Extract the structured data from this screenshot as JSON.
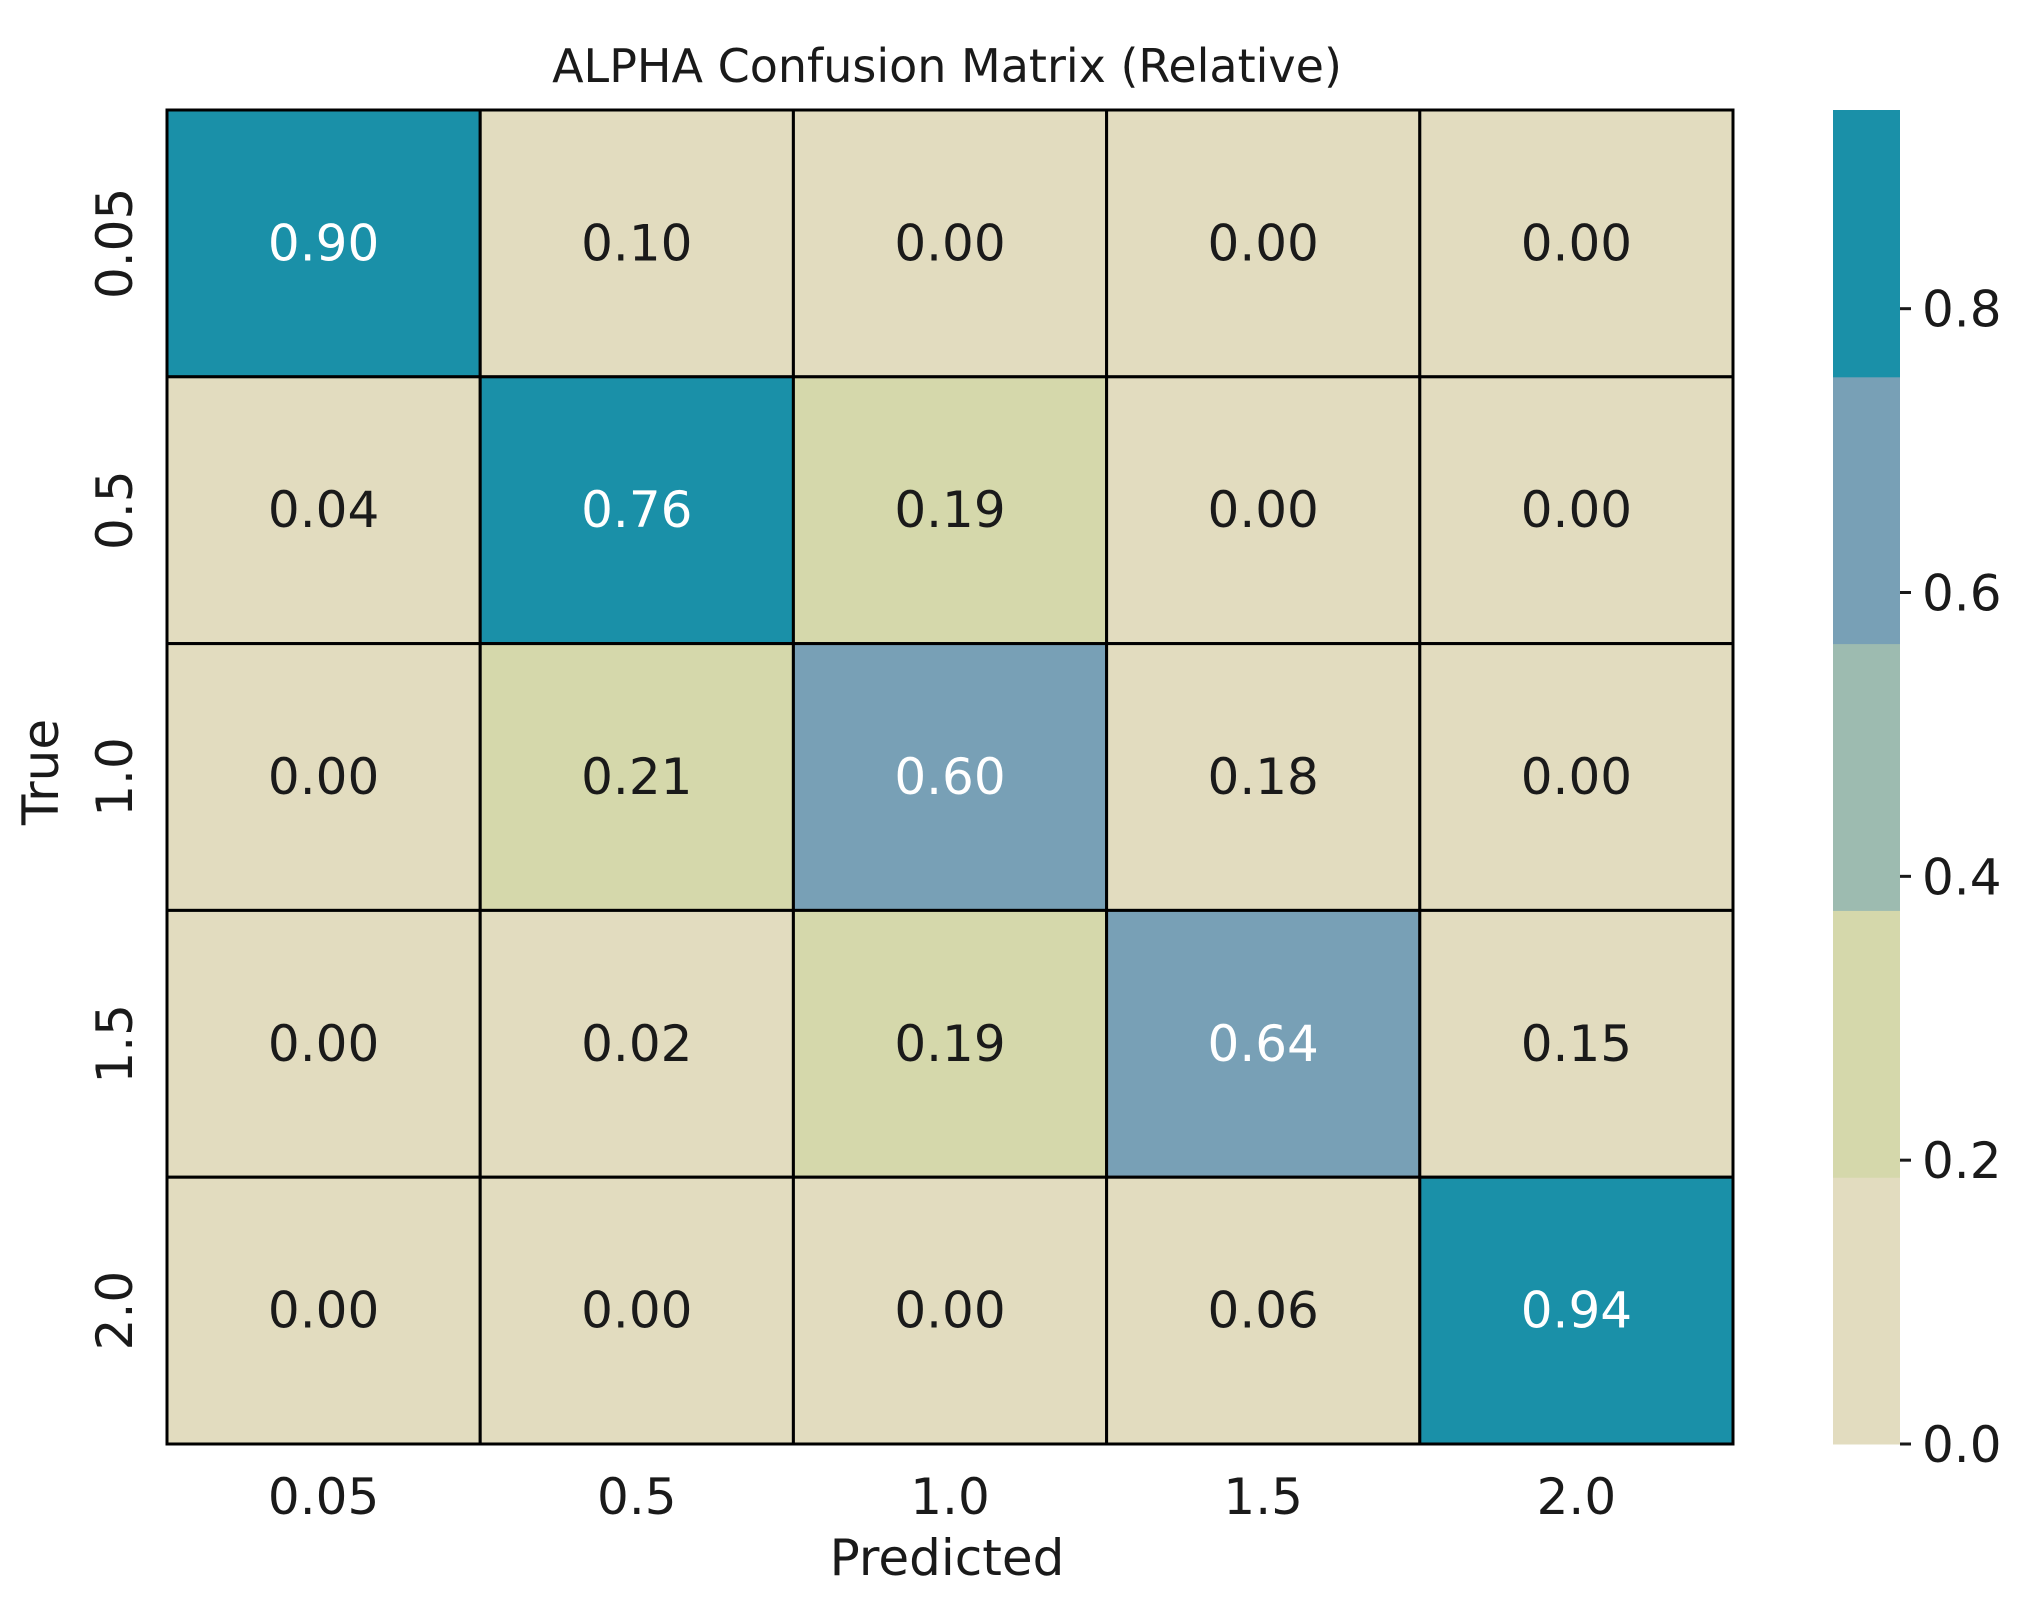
{
  "chart_data": {
    "type": "heatmap",
    "title": "ALPHA Confusion Matrix (Relative)",
    "xlabel": "Predicted",
    "ylabel": "True",
    "x_categories": [
      "0.05",
      "0.5",
      "1.0",
      "1.5",
      "2.0"
    ],
    "y_categories": [
      "0.05",
      "0.5",
      "1.0",
      "1.5",
      "2.0"
    ],
    "values": [
      [
        0.9,
        0.1,
        0.0,
        0.0,
        0.0
      ],
      [
        0.04,
        0.76,
        0.19,
        0.0,
        0.0
      ],
      [
        0.0,
        0.21,
        0.6,
        0.18,
        0.0
      ],
      [
        0.0,
        0.02,
        0.19,
        0.64,
        0.15
      ],
      [
        0.0,
        0.0,
        0.0,
        0.06,
        0.94
      ]
    ],
    "value_format": "0.00",
    "colorbar": {
      "range": [
        0.0,
        0.94
      ],
      "ticks": [
        "0.0",
        "0.2",
        "0.4",
        "0.6",
        "0.8"
      ],
      "tick_values": [
        0.0,
        0.2,
        0.4,
        0.6,
        0.8
      ],
      "bands": [
        {
          "min": 0.0,
          "max": 0.188,
          "color": "#e2dcbf"
        },
        {
          "min": 0.188,
          "max": 0.376,
          "color": "#d5d8ab"
        },
        {
          "min": 0.376,
          "max": 0.564,
          "color": "#9dbbb0"
        },
        {
          "min": 0.564,
          "max": 0.752,
          "color": "#78a0b6"
        },
        {
          "min": 0.752,
          "max": 0.94,
          "color": "#1a90a8"
        }
      ]
    },
    "colors": {
      "text_dark": "#1a1a1a",
      "text_light": "#ffffff",
      "grid_line": "#000000"
    }
  }
}
